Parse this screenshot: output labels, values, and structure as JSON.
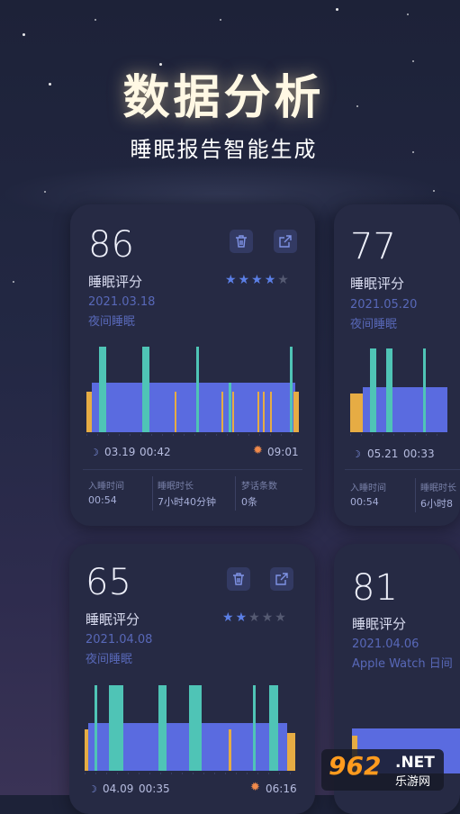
{
  "header": {
    "title": "数据分析",
    "subtitle": "睡眠报告智能生成"
  },
  "colors": {
    "deep_sleep": "#5a6be0",
    "rem": "#4fc4b6",
    "awake": "#e6ac44",
    "accent": "#5b7fe6",
    "card_bg": "#262a44"
  },
  "icons": {
    "delete": "trash-icon",
    "share": "share-icon",
    "sleep_start": "moon-icon",
    "wake": "sun-icon"
  },
  "cards": [
    {
      "score": "86",
      "label": "睡眠评分",
      "date": "2021.03.18",
      "type": "夜间睡眠",
      "stars_filled": 4,
      "stars_total": 5,
      "start_date": "03.19",
      "start_time": "00:42",
      "end_time": "09:01",
      "stats": [
        {
          "label": "入睡时间",
          "value": "00:54"
        },
        {
          "label": "睡眠时长",
          "value": "7小时40分钟"
        },
        {
          "label": "梦话条数",
          "value": "0条"
        }
      ]
    },
    {
      "score": "77",
      "label": "睡眠评分",
      "date": "2021.05.20",
      "type": "夜间睡眠",
      "start_date": "05.21",
      "start_time": "00:33",
      "stats": [
        {
          "label": "入睡时间",
          "value": "00:54"
        },
        {
          "label": "睡眠时长",
          "value": "6小时8"
        }
      ]
    },
    {
      "score": "65",
      "label": "睡眠评分",
      "date": "2021.04.08",
      "type": "夜间睡眠",
      "stars_filled": 2,
      "stars_total": 5,
      "start_date": "04.09",
      "start_time": "00:35",
      "end_time": "06:16"
    },
    {
      "score": "81",
      "label": "睡眠评分",
      "date": "2021.04.06",
      "type": "Apple Watch 日间"
    }
  ],
  "watermark": {
    "number": "962",
    "suffix": ".NET",
    "site": "乐游网"
  }
}
